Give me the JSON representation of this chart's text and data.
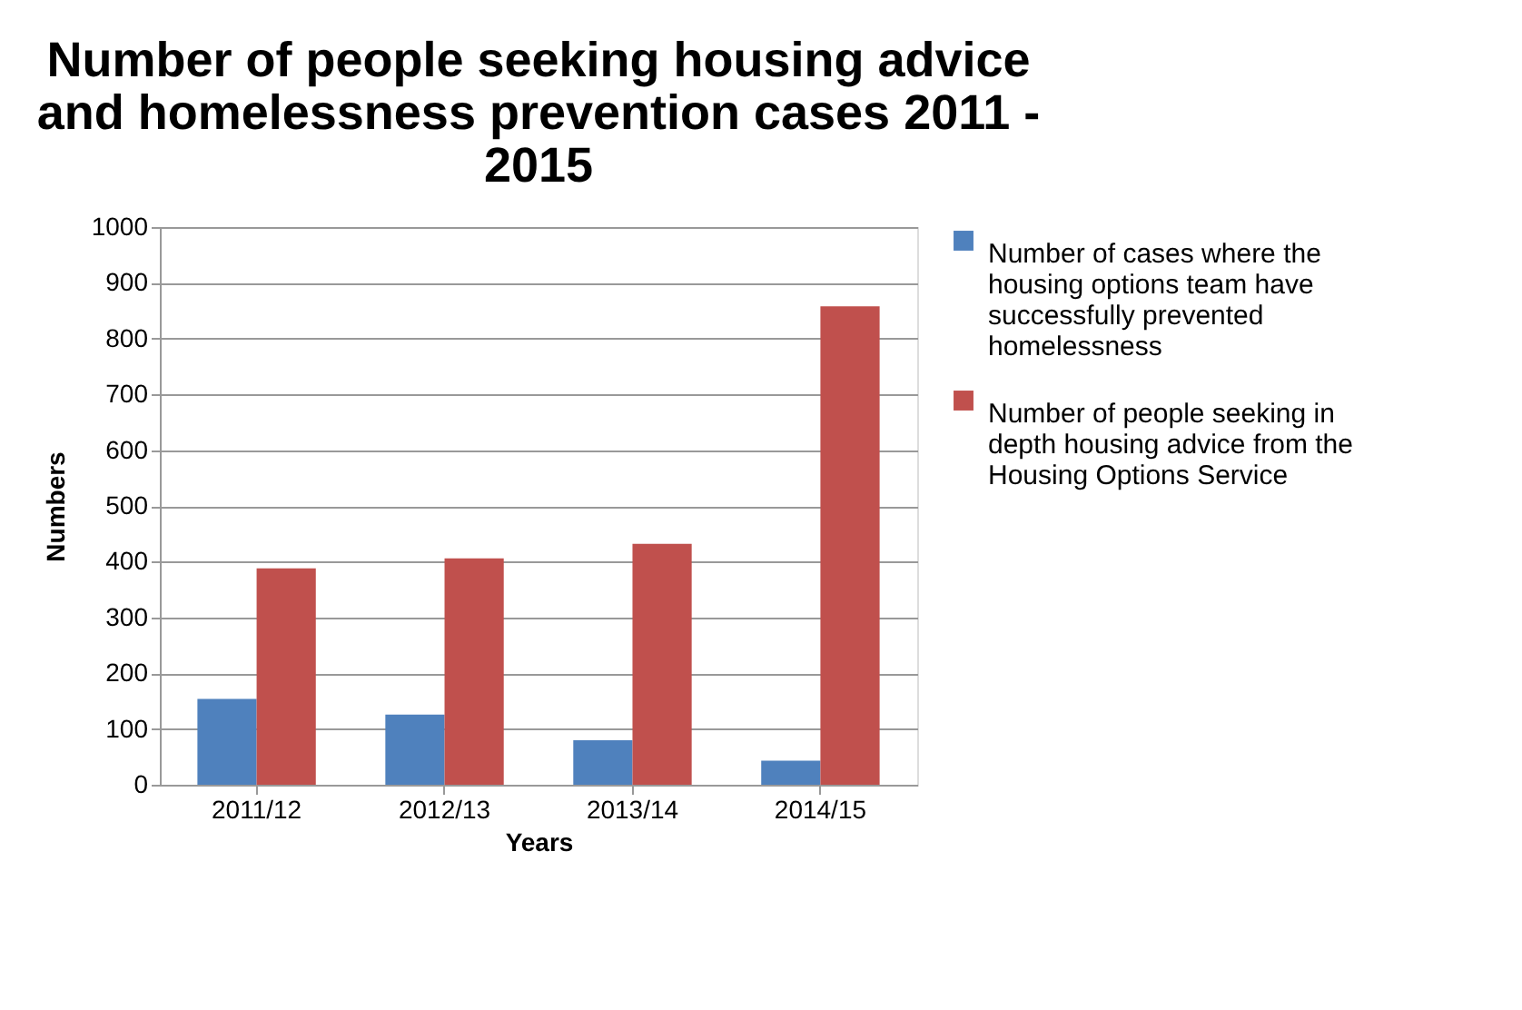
{
  "chart_data": {
    "type": "bar",
    "title": "Number of people seeking housing advice and homelessness prevention cases 2011 - 2015",
    "xlabel": "Years",
    "ylabel": "Numbers",
    "categories": [
      "2011/12",
      "2012/13",
      "2013/14",
      "2014/15"
    ],
    "series": [
      {
        "name": "Number of cases where the housing options team have successfully prevented homelessness",
        "color": "#4f81bd",
        "values": [
          154,
          126,
          80,
          43
        ]
      },
      {
        "name": "Number of people seeking in depth housing advice from the Housing Options Service",
        "color": "#c0504d",
        "values": [
          388,
          406,
          432,
          858
        ]
      }
    ],
    "ylim": [
      0,
      1000
    ],
    "yticks": [
      0,
      100,
      200,
      300,
      400,
      500,
      600,
      700,
      800,
      900,
      1000
    ],
    "grid": "y",
    "legend": "right"
  }
}
